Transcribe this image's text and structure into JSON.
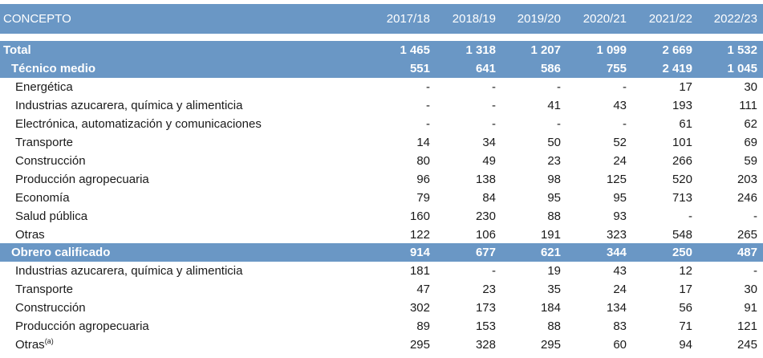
{
  "header": {
    "concepto": "CONCEPTO",
    "years": [
      "2017/18",
      "2018/19",
      "2019/20",
      "2020/21",
      "2021/22",
      "2022/23"
    ]
  },
  "rows": [
    {
      "label": "Total",
      "values": [
        "1 465",
        "1 318",
        "1 207",
        "1 099",
        "2 669",
        "1 532"
      ]
    },
    {
      "label": "Técnico medio",
      "values": [
        "551",
        "641",
        "586",
        "755",
        "2 419",
        "1 045"
      ]
    },
    {
      "label": "Energética",
      "values": [
        "-",
        "-",
        "-",
        "-",
        "17",
        "30"
      ]
    },
    {
      "label": "Industrias azucarera, química y alimenticia",
      "values": [
        "-",
        "-",
        "41",
        "43",
        "193",
        "111"
      ]
    },
    {
      "label": "Electrónica, automatización y comunicaciones",
      "values": [
        "-",
        "-",
        "-",
        "-",
        "61",
        "62"
      ]
    },
    {
      "label": "Transporte",
      "values": [
        "14",
        "34",
        "50",
        "52",
        "101",
        "69"
      ]
    },
    {
      "label": "Construcción",
      "values": [
        "80",
        "49",
        "23",
        "24",
        "266",
        "59"
      ]
    },
    {
      "label": "Producción agropecuaria",
      "values": [
        "96",
        "138",
        "98",
        "125",
        "520",
        "203"
      ]
    },
    {
      "label": "Economía",
      "values": [
        "79",
        "84",
        "95",
        "95",
        "713",
        "246"
      ]
    },
    {
      "label": "Salud pública",
      "values": [
        "160",
        "230",
        "88",
        "93",
        "-",
        "-"
      ]
    },
    {
      "label": "Otras",
      "values": [
        "122",
        "106",
        "191",
        "323",
        "548",
        "265"
      ]
    },
    {
      "label": "Obrero calificado",
      "values": [
        "914",
        "677",
        "621",
        "344",
        "250",
        "487"
      ]
    },
    {
      "label": "Industrias azucarera, química y alimenticia",
      "values": [
        "181",
        "-",
        "19",
        "43",
        "12",
        "-"
      ]
    },
    {
      "label": "Transporte",
      "values": [
        "47",
        "23",
        "35",
        "24",
        "17",
        "30"
      ]
    },
    {
      "label": "Construcción",
      "values": [
        "302",
        "173",
        "184",
        "134",
        "56",
        "91"
      ]
    },
    {
      "label": "Producción agropecuaria",
      "values": [
        "89",
        "153",
        "88",
        "83",
        "71",
        "121"
      ]
    },
    {
      "label": "Otras",
      "note": "(a)",
      "values": [
        "295",
        "328",
        "295",
        "60",
        "94",
        "245"
      ]
    }
  ]
}
